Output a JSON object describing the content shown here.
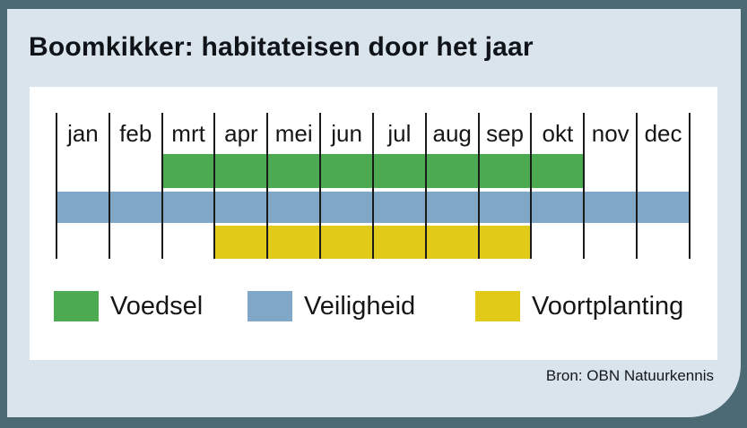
{
  "title": "Boomkikker: habitateisen door het jaar",
  "source": "Bron: OBN Natuurkennis",
  "colors": {
    "frame": "#4c6a74",
    "card": "#d9e4ec",
    "panel": "#ffffff",
    "gridline": "#1a1a1a",
    "green": "#4cab51",
    "blue": "#80a7c7",
    "yellow": "#e2ca18"
  },
  "chart_data": {
    "type": "timeline",
    "title": "Boomkikker: habitateisen door het jaar",
    "categories": [
      "jan",
      "feb",
      "mrt",
      "apr",
      "mei",
      "jun",
      "jul",
      "aug",
      "sep",
      "okt",
      "nov",
      "dec"
    ],
    "series": [
      {
        "name": "Voedsel",
        "color": "#4cab51",
        "start_month": "mrt",
        "end_month": "okt",
        "start_index": 2,
        "end_index": 10
      },
      {
        "name": "Veiligheid",
        "color": "#80a7c7",
        "start_month": "jan",
        "end_month": "dec",
        "start_index": 0,
        "end_index": 12
      },
      {
        "name": "Voortplanting",
        "color": "#e2ca18",
        "start_month": "apr",
        "end_month": "sep",
        "start_index": 3,
        "end_index": 9
      }
    ],
    "legend": [
      "Voedsel",
      "Veiligheid",
      "Voortplanting"
    ],
    "legend_position": "bottom",
    "grid": "monthly vertical lines",
    "source": "Bron: OBN Natuurkennis"
  }
}
